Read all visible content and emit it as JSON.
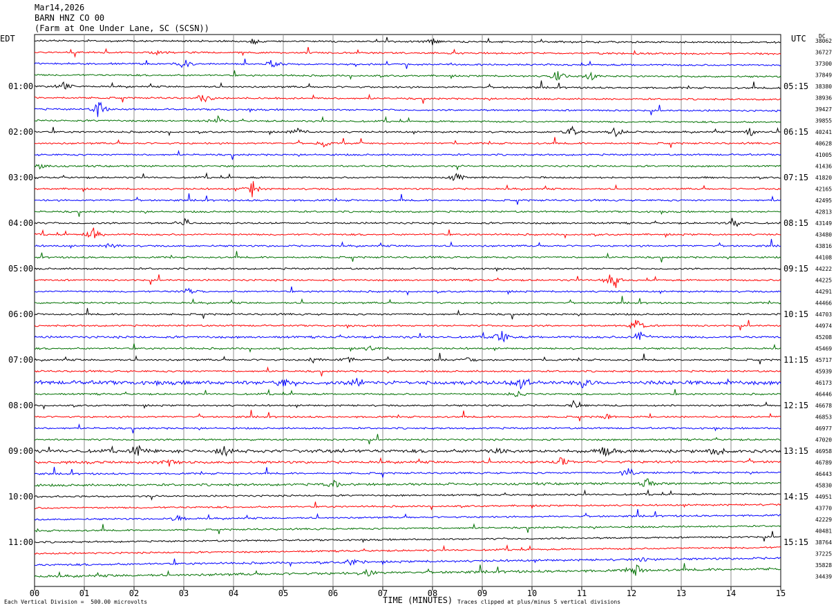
{
  "header": {
    "date": "Mar14,2026",
    "station": "BARN HNZ CO 00",
    "location": "(Farm at One Under Lane, SC (SCSN))"
  },
  "labels": {
    "left_tz": "EDT",
    "right_tz": "UTC",
    "dc": "DC",
    "footer_left": "Each Vertical Division =  500.00 microvolts",
    "footer_right": "Traces clipped at plus/minus 5 vertical divisions"
  },
  "colors": {
    "trace_cycle": [
      "#000000",
      "#ff0000",
      "#0000ff",
      "#007000"
    ],
    "grid": "#8c8c8c",
    "frame": "#000000"
  },
  "chart_data": {
    "type": "line",
    "xlabel": "TIME (MINUTES)",
    "xlim": [
      0,
      15
    ],
    "x_ticks": [
      "00",
      "01",
      "02",
      "03",
      "04",
      "05",
      "06",
      "07",
      "08",
      "09",
      "10",
      "11",
      "12",
      "13",
      "14",
      "15"
    ],
    "left_hour_labels": [
      "01:00",
      "02:00",
      "03:00",
      "04:00",
      "05:00",
      "06:00",
      "07:00",
      "08:00",
      "09:00",
      "10:00",
      "11:00"
    ],
    "right_hour_labels": [
      "05:15",
      "06:15",
      "07:15",
      "08:15",
      "09:15",
      "10:15",
      "11:15",
      "12:15",
      "13:15",
      "14:15",
      "15:15"
    ],
    "hour_label_rows": [
      4,
      8,
      12,
      16,
      20,
      24,
      28,
      32,
      36,
      40,
      44
    ],
    "dc_offsets": [
      38062,
      36727,
      37300,
      37849,
      38380,
      38936,
      39427,
      39855,
      40241,
      40628,
      41005,
      41436,
      41820,
      42165,
      42495,
      42813,
      43149,
      43480,
      43816,
      44108,
      44222,
      44225,
      44291,
      44466,
      44703,
      44974,
      45208,
      45469,
      45717,
      45939,
      46173,
      46446,
      46678,
      46853,
      46977,
      47020,
      46958,
      46789,
      46443,
      45830,
      44951,
      43770,
      42229,
      40481,
      38764,
      37225,
      35828,
      34439
    ],
    "trace_count": 48,
    "minutes_per_trace": 15,
    "events": [
      {
        "row": 0,
        "minute": 4.4,
        "amp": 6
      },
      {
        "row": 0,
        "minute": 8.0,
        "amp": 8
      },
      {
        "row": 1,
        "minute": 2.5,
        "amp": 6
      },
      {
        "row": 2,
        "minute": 3.0,
        "amp": 10
      },
      {
        "row": 2,
        "minute": 4.8,
        "amp": 9
      },
      {
        "row": 3,
        "minute": 10.5,
        "amp": 12
      },
      {
        "row": 3,
        "minute": 11.2,
        "amp": 9
      },
      {
        "row": 4,
        "minute": 0.6,
        "amp": 8
      },
      {
        "row": 5,
        "minute": 3.4,
        "amp": 10
      },
      {
        "row": 6,
        "minute": 1.3,
        "amp": 16
      },
      {
        "row": 7,
        "minute": 3.7,
        "amp": 8
      },
      {
        "row": 8,
        "minute": 5.3,
        "amp": 7
      },
      {
        "row": 8,
        "minute": 10.8,
        "amp": 8
      },
      {
        "row": 8,
        "minute": 11.7,
        "amp": 12
      },
      {
        "row": 8,
        "minute": 14.4,
        "amp": 9
      },
      {
        "row": 9,
        "minute": 5.8,
        "amp": 6
      },
      {
        "row": 11,
        "minute": 0.1,
        "amp": 6
      },
      {
        "row": 12,
        "minute": 8.5,
        "amp": 10
      },
      {
        "row": 13,
        "minute": 4.4,
        "amp": 16
      },
      {
        "row": 16,
        "minute": 3.0,
        "amp": 12
      },
      {
        "row": 16,
        "minute": 14.1,
        "amp": 7
      },
      {
        "row": 17,
        "minute": 1.2,
        "amp": 12
      },
      {
        "row": 18,
        "minute": 1.5,
        "amp": 6
      },
      {
        "row": 21,
        "minute": 11.6,
        "amp": 14
      },
      {
        "row": 22,
        "minute": 3.1,
        "amp": 6
      },
      {
        "row": 25,
        "minute": 12.1,
        "amp": 14
      },
      {
        "row": 26,
        "minute": 9.4,
        "amp": 12
      },
      {
        "row": 26,
        "minute": 12.2,
        "amp": 12
      },
      {
        "row": 27,
        "minute": 6.8,
        "amp": 6
      },
      {
        "row": 28,
        "minute": 5.6,
        "amp": 7
      },
      {
        "row": 28,
        "minute": 6.3,
        "amp": 7
      },
      {
        "row": 28,
        "minute": 8.7,
        "amp": 6
      },
      {
        "row": 30,
        "minute": 5.0,
        "amp": 10
      },
      {
        "row": 30,
        "minute": 6.5,
        "amp": 9
      },
      {
        "row": 30,
        "minute": 9.8,
        "amp": 12
      },
      {
        "row": 30,
        "minute": 11.0,
        "amp": 10
      },
      {
        "row": 31,
        "minute": 9.7,
        "amp": 8
      },
      {
        "row": 32,
        "minute": 10.9,
        "amp": 7
      },
      {
        "row": 33,
        "minute": 11.5,
        "amp": 6
      },
      {
        "row": 36,
        "minute": 2.1,
        "amp": 10
      },
      {
        "row": 36,
        "minute": 3.8,
        "amp": 12
      },
      {
        "row": 36,
        "minute": 9.3,
        "amp": 9
      },
      {
        "row": 36,
        "minute": 11.5,
        "amp": 12
      },
      {
        "row": 36,
        "minute": 13.7,
        "amp": 12
      },
      {
        "row": 37,
        "minute": 2.7,
        "amp": 8
      },
      {
        "row": 37,
        "minute": 10.6,
        "amp": 9
      },
      {
        "row": 38,
        "minute": 11.9,
        "amp": 14
      },
      {
        "row": 39,
        "minute": 6.0,
        "amp": 8
      },
      {
        "row": 39,
        "minute": 12.3,
        "amp": 10
      },
      {
        "row": 42,
        "minute": 2.9,
        "amp": 8
      },
      {
        "row": 46,
        "minute": 6.4,
        "amp": 8
      },
      {
        "row": 46,
        "minute": 12.3,
        "amp": 7
      },
      {
        "row": 47,
        "minute": 6.7,
        "amp": 8
      },
      {
        "row": 47,
        "minute": 12.1,
        "amp": 9
      }
    ]
  }
}
